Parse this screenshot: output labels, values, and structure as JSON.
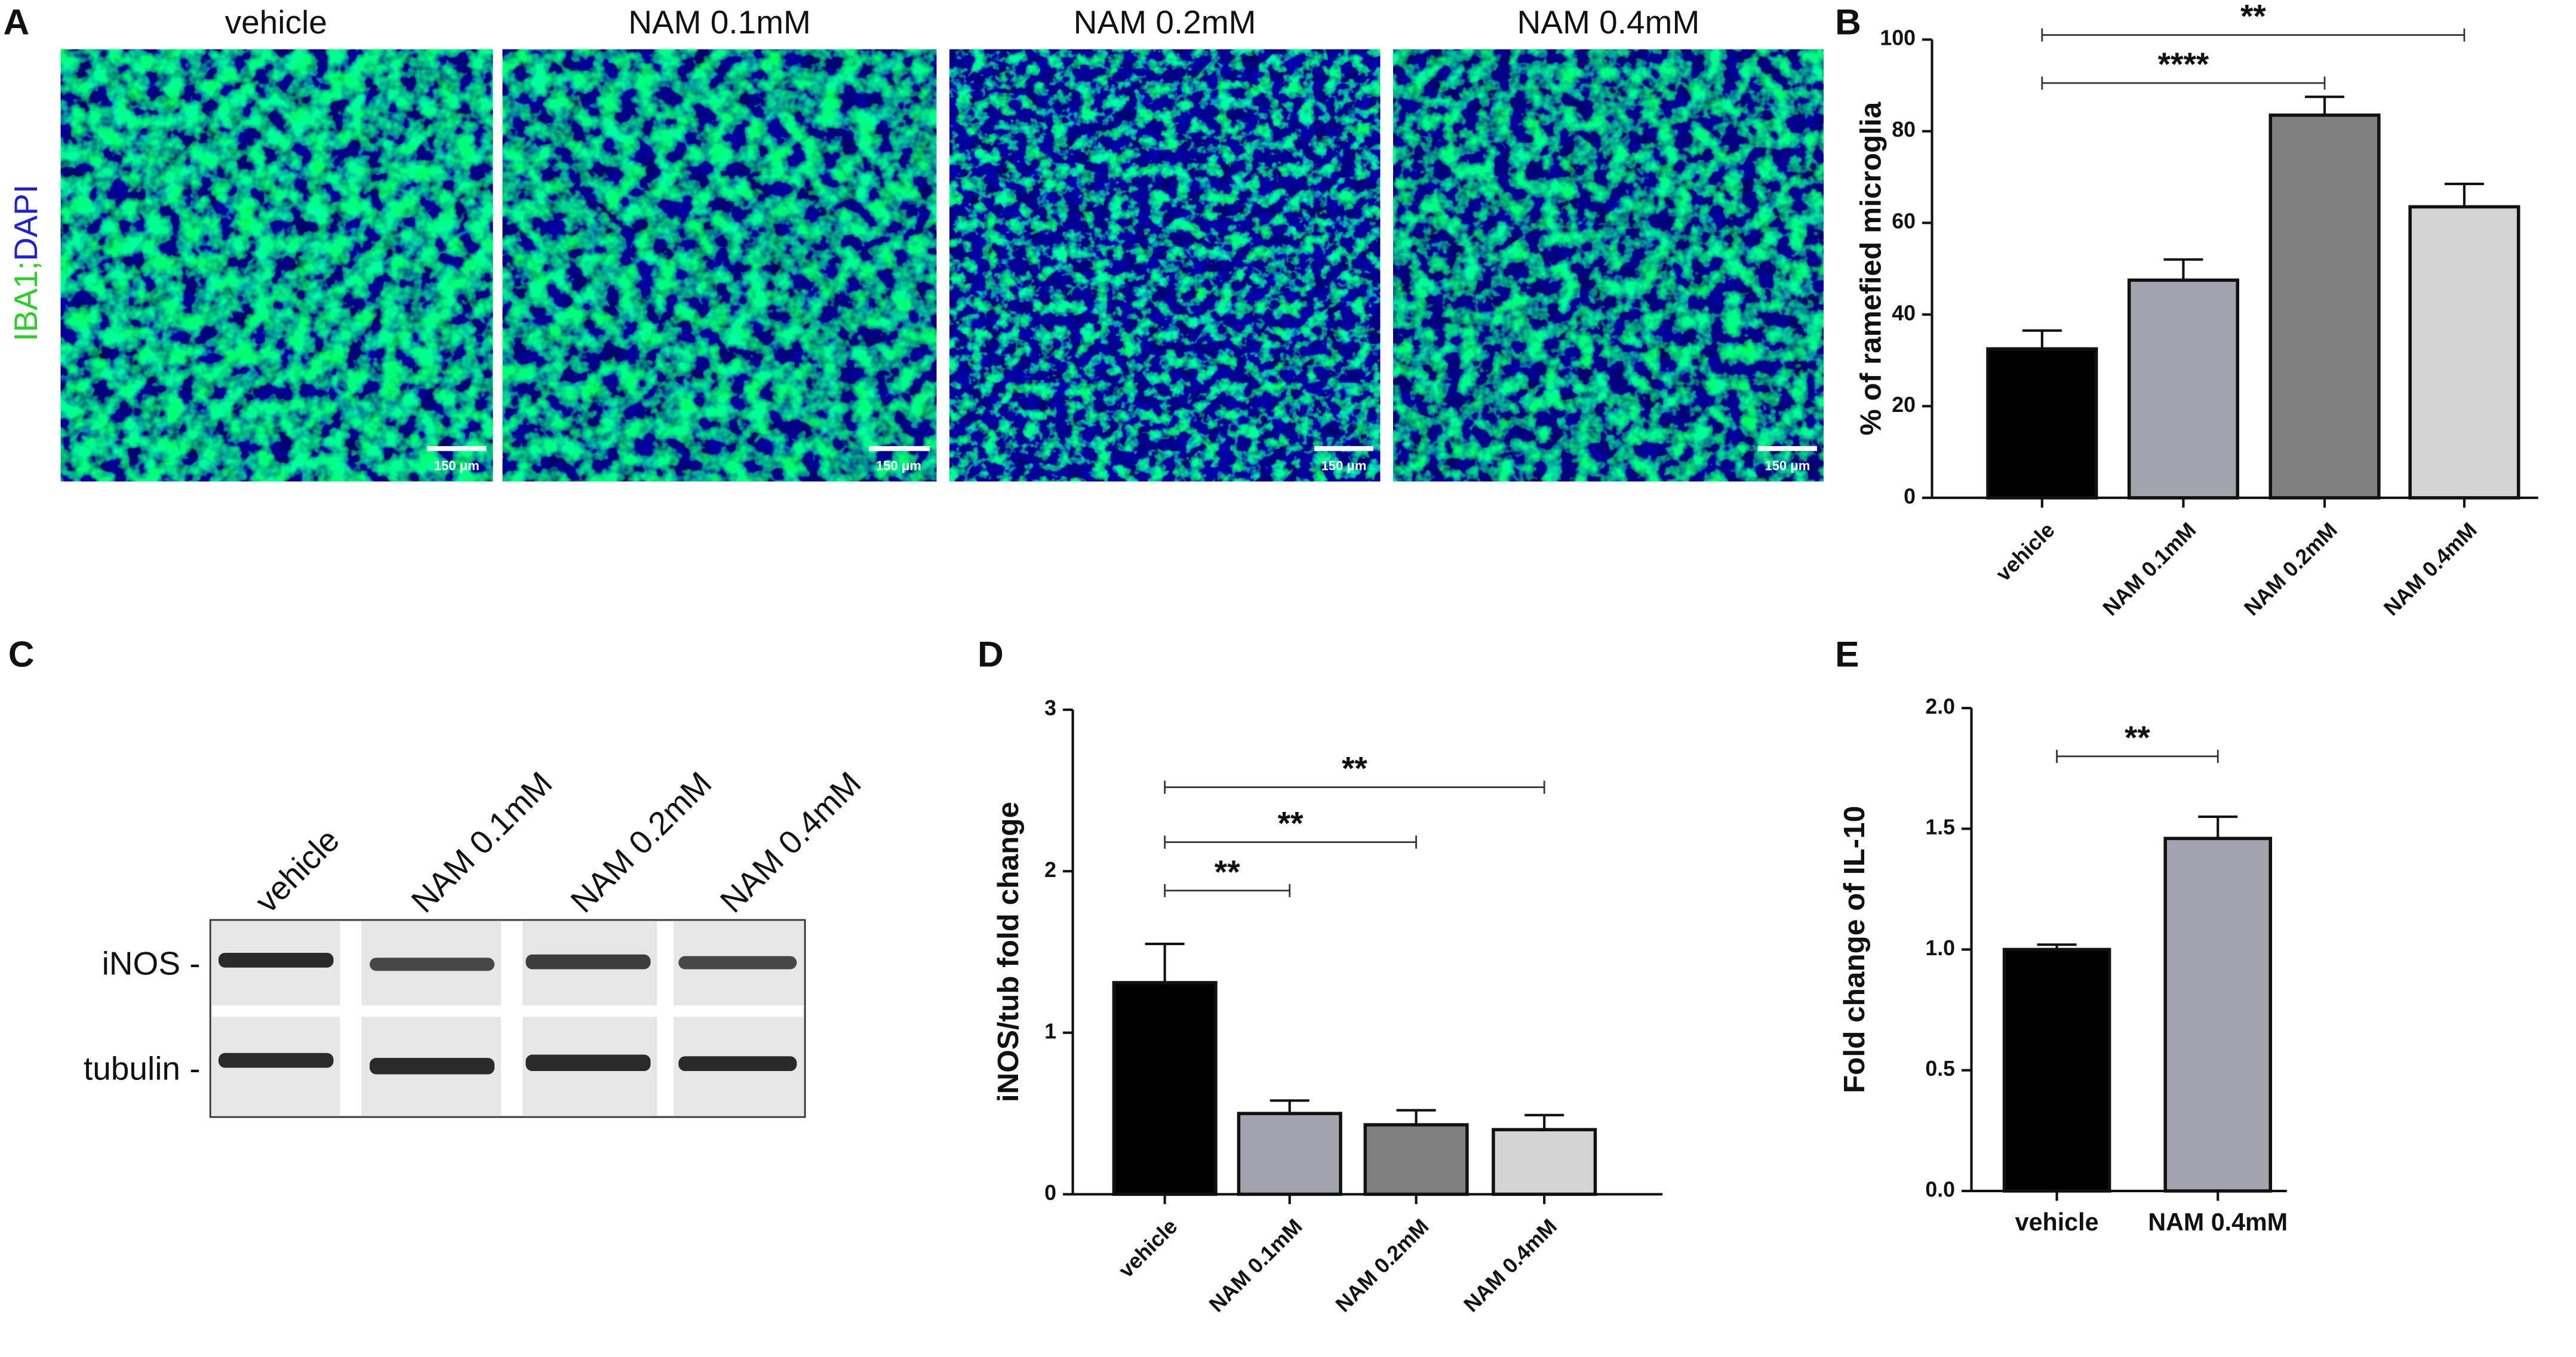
{
  "panel_letters": [
    "A",
    "B",
    "C",
    "D",
    "E"
  ],
  "microscopy": {
    "stain_1": "IBA1",
    "separator": ";",
    "stain_2": "DAPI",
    "titles": [
      "vehicle",
      "NAM 0.1mM",
      "NAM 0.2mM",
      "NAM 0.4mM"
    ],
    "scale_bar": "150 μm"
  },
  "western_blot": {
    "lanes": [
      "vehicle",
      "NAM 0.1mM",
      "NAM 0.2mM",
      "NAM 0.4mM"
    ],
    "rows": [
      "iNOS -",
      "tubulin -"
    ]
  },
  "chart_data": [
    {
      "type": "bar",
      "ylabel": "% of ramefied microglia",
      "categories": [
        "vehicle",
        "NAM 0.1mM",
        "NAM 0.2mM",
        "NAM 0.4mM"
      ],
      "values": [
        32.5,
        47.5,
        83.5,
        63.5
      ],
      "errors": [
        4,
        4.5,
        4,
        5
      ],
      "colors": [
        "#000000",
        "#a3a3ab",
        "#808080",
        "#d4d4d4"
      ],
      "ylim": [
        0,
        100
      ],
      "yticks": [
        0,
        20,
        40,
        60,
        80,
        100
      ],
      "annotations": [
        {
          "text": "**",
          "from": "vehicle",
          "to": "NAM 0.4mM",
          "y": 101
        },
        {
          "text": "****",
          "from": "vehicle",
          "to": "NAM 0.2mM",
          "y": 90.5
        }
      ]
    },
    {
      "type": "bar",
      "ylabel": "iNOS/tub fold change",
      "categories": [
        "vehicle",
        "NAM 0.1mM",
        "NAM 0.2mM",
        "NAM 0.4mM"
      ],
      "values": [
        1.31,
        0.5,
        0.43,
        0.4
      ],
      "errors": [
        0.24,
        0.08,
        0.09,
        0.09
      ],
      "colors": [
        "#000000",
        "#a3a3ab",
        "#808080",
        "#d4d4d4"
      ],
      "ylim": [
        0,
        3
      ],
      "yticks": [
        0,
        1,
        2,
        3
      ],
      "annotations": [
        {
          "text": "**",
          "from": "vehicle",
          "to": "NAM 0.4mM",
          "y": 2.52
        },
        {
          "text": "**",
          "from": "vehicle",
          "to": "NAM 0.2mM",
          "y": 2.18
        },
        {
          "text": "**",
          "from": "vehicle",
          "to": "NAM 0.1mM",
          "y": 1.88
        }
      ]
    },
    {
      "type": "bar",
      "ylabel": "Fold change of IL-10",
      "categories": [
        "vehicle",
        "NAM 0.4mM"
      ],
      "values": [
        1.0,
        1.46
      ],
      "errors": [
        0.02,
        0.09
      ],
      "colors": [
        "#000000",
        "#a3a3ab"
      ],
      "ylim": [
        0,
        2
      ],
      "yticks": [
        {
          "value": 0,
          "label": "0.0"
        },
        0.5,
        {
          "value": 1,
          "label": "1.0"
        },
        1.5,
        {
          "value": 2,
          "label": "2.0"
        }
      ],
      "annotations": [
        {
          "text": "**",
          "from": "vehicle",
          "to": "NAM 0.4mM",
          "y": 1.8
        }
      ]
    }
  ]
}
